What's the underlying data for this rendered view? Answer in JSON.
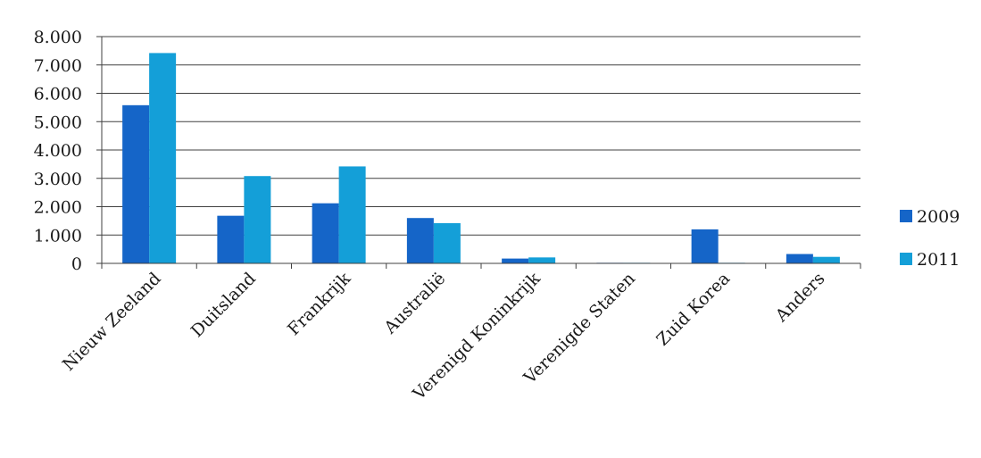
{
  "chart_data": {
    "type": "bar",
    "title": "",
    "xlabel": "",
    "ylabel": "",
    "categories": [
      "Nieuw Zeeland",
      "Duitsland",
      "Frankrijk",
      "Australië",
      "Verenigd Koninkrijk",
      "Verenigde Staten",
      "Zuid Korea",
      "Anders"
    ],
    "series": [
      {
        "name": "2009",
        "color": "#1565c8",
        "values": [
          5580,
          1680,
          2120,
          1600,
          170,
          20,
          1200,
          330
        ]
      },
      {
        "name": "2011",
        "color": "#149fd8",
        "values": [
          7420,
          3080,
          3420,
          1420,
          210,
          20,
          20,
          230
        ]
      }
    ],
    "ylim": [
      0,
      8000
    ],
    "yticks": [
      {
        "value": 0,
        "label": "0"
      },
      {
        "value": 1000,
        "label": "1.000"
      },
      {
        "value": 2000,
        "label": "2.000"
      },
      {
        "value": 3000,
        "label": "3.000"
      },
      {
        "value": 4000,
        "label": "4.000"
      },
      {
        "value": 5000,
        "label": "5.000"
      },
      {
        "value": 6000,
        "label": "6.000"
      },
      {
        "value": 7000,
        "label": "7.000"
      },
      {
        "value": 8000,
        "label": "8.000"
      }
    ],
    "grid": true,
    "legend_position": "right"
  }
}
